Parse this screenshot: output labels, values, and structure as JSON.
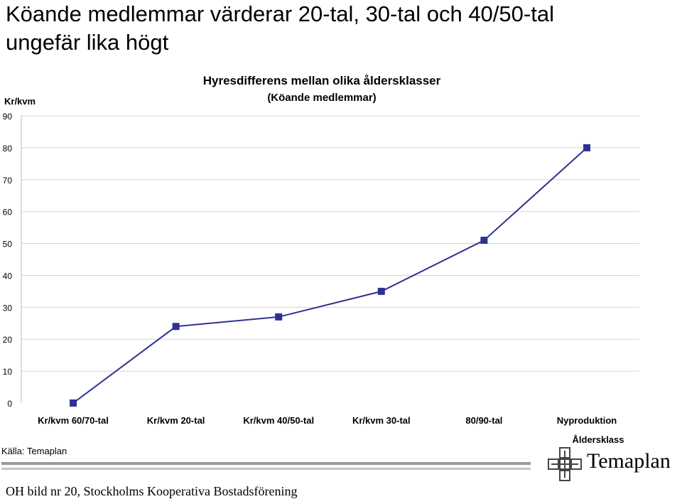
{
  "headline": {
    "line1": "Köande medlemmar värderar 20-tal, 30-tal och 40/50-tal",
    "line2": "ungefär lika högt"
  },
  "chart_data": {
    "type": "line",
    "title": "Hyresdifferens mellan olika åldersklasser",
    "subtitle": "(Köande medlemmar)",
    "ylabel": "Kr/kvm",
    "xlabel": "Åldersklass",
    "ylim": [
      0,
      90
    ],
    "yticks": [
      0,
      10,
      20,
      30,
      40,
      50,
      60,
      70,
      80,
      90
    ],
    "grid": true,
    "categories": [
      "Kr/kvm 60/70-tal",
      "Kr/kvm 20-tal",
      "Kr/kvm 40/50-tal",
      "Kr/kvm 30-tal",
      "80/90-tal",
      "Nyproduktion"
    ],
    "values": [
      0,
      24,
      27,
      35,
      51,
      80
    ],
    "color": "#2e3192"
  },
  "source": "Källa: Temaplan",
  "footer": "OH bild nr 20, Stockholms Kooperativa Bostadsförening",
  "logo": {
    "text": "Temaplan",
    "icon": "cross-logo-icon"
  }
}
